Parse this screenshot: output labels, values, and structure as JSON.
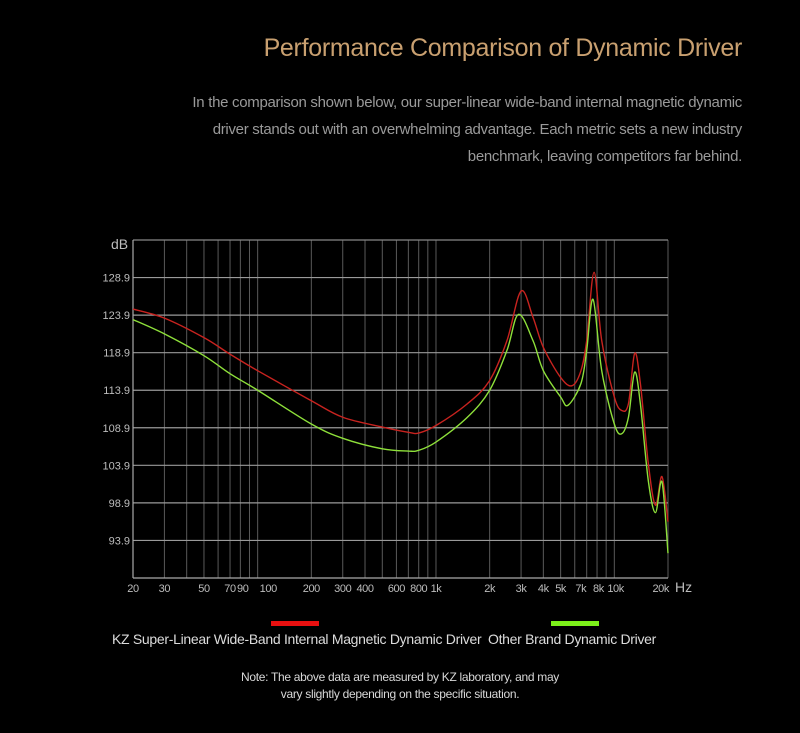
{
  "header": {
    "title": "Performance Comparison of Dynamic Driver",
    "description_lines": [
      "In the comparison shown below, our super-linear wide-band internal magnetic dynamic",
      "driver stands out with an overwhelming advantage. Each metric sets a new industry",
      "benchmark, leaving competitors far behind."
    ]
  },
  "chart_data": {
    "type": "line",
    "title": "",
    "xlabel": "Hz",
    "ylabel": "dB",
    "xscale": "log",
    "xlim": [
      20,
      20000
    ],
    "ylim": [
      88.9,
      133.9
    ],
    "grid": true,
    "legend_placement": "bottom",
    "x_tick_labels": [
      {
        "f": 20,
        "label": "20"
      },
      {
        "f": 30,
        "label": "30"
      },
      {
        "f": 50,
        "label": "50"
      },
      {
        "f": 70,
        "label": "70"
      },
      {
        "f": 90,
        "label": "90"
      },
      {
        "f": 100,
        "label": "100"
      },
      {
        "f": 200,
        "label": "200"
      },
      {
        "f": 300,
        "label": "300"
      },
      {
        "f": 400,
        "label": "400"
      },
      {
        "f": 600,
        "label": "600"
      },
      {
        "f": 800,
        "label": "800"
      },
      {
        "f": 1000,
        "label": "1k"
      },
      {
        "f": 2000,
        "label": "2k"
      },
      {
        "f": 3000,
        "label": "3k"
      },
      {
        "f": 4000,
        "label": "4k"
      },
      {
        "f": 5000,
        "label": "5k"
      },
      {
        "f": 7000,
        "label": "7k"
      },
      {
        "f": 8000,
        "label": "8k"
      },
      {
        "f": 10000,
        "label": "10k"
      },
      {
        "f": 20000,
        "label": "20k"
      }
    ],
    "y_ticks": [
      128.9,
      123.9,
      118.9,
      113.9,
      108.9,
      103.9,
      98.9,
      93.9
    ],
    "y_tick_labels": [
      "128.9",
      "123.9",
      "118.9",
      "113.9",
      "108.9",
      "103.9",
      "98.9",
      "93.9"
    ],
    "series": [
      {
        "name": "KZ Super-Linear Wide-Band Internal Magnetic Dynamic Driver",
        "color": "#c8231f",
        "legend_color": "#e81010",
        "x": [
          20,
          30,
          50,
          70,
          100,
          200,
          300,
          500,
          700,
          800,
          1000,
          1500,
          2000,
          2500,
          3000,
          3500,
          4000,
          5000,
          5800,
          6500,
          7000,
          7700,
          8500,
          10000,
          11000,
          12000,
          13000,
          14000,
          15500,
          17000,
          18500,
          20000
        ],
        "y": [
          124.7,
          123.5,
          120.9,
          118.7,
          116.5,
          112.5,
          110.3,
          109.0,
          108.3,
          108.2,
          109.2,
          112.1,
          115.2,
          120.5,
          127.1,
          123.6,
          119.6,
          115.6,
          114.5,
          116.5,
          120.5,
          129.6,
          120.5,
          113.0,
          111.2,
          112.1,
          118.8,
          114.8,
          104.2,
          98.6,
          102.4,
          96.4
        ]
      },
      {
        "name": "Other Brand Dynamic Driver",
        "color": "#8ee03a",
        "legend_color": "#7cf01a",
        "x": [
          20,
          30,
          50,
          70,
          100,
          200,
          300,
          500,
          700,
          800,
          1000,
          1500,
          2000,
          2500,
          2900,
          3500,
          4000,
          5000,
          5500,
          6500,
          7000,
          7600,
          8500,
          10000,
          11000,
          12000,
          13000,
          14000,
          15500,
          17000,
          18500,
          20000
        ],
        "y": [
          123.3,
          121.4,
          118.5,
          116.1,
          113.9,
          109.4,
          107.5,
          106.1,
          105.8,
          105.9,
          107.0,
          110.3,
          113.9,
          119.2,
          124.0,
          120.5,
          116.5,
          113.0,
          111.9,
          114.8,
          119.2,
          126.0,
          116.5,
          109.4,
          108.1,
          110.3,
          116.3,
          112.1,
          101.9,
          97.6,
          101.7,
          92.2
        ]
      }
    ]
  },
  "note_lines": [
    "Note: The above data are measured by KZ laboratory, and may",
    "vary slightly depending on the specific situation."
  ]
}
